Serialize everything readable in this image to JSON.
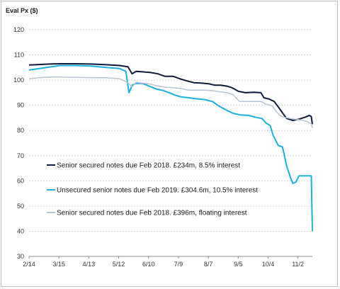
{
  "chart_data": {
    "type": "line",
    "ylabel": "Eval Px ($)",
    "ylim": [
      30,
      120
    ],
    "yticks": [
      30,
      40,
      50,
      60,
      70,
      80,
      90,
      100,
      110,
      120
    ],
    "xlim": [
      0,
      275
    ],
    "xticks": [
      {
        "label": "2/14",
        "x": 0
      },
      {
        "label": "3/15",
        "x": 29
      },
      {
        "label": "4/13",
        "x": 58
      },
      {
        "label": "5/12",
        "x": 87
      },
      {
        "label": "6/10",
        "x": 116
      },
      {
        "label": "7/9",
        "x": 145
      },
      {
        "label": "8/7",
        "x": 174
      },
      {
        "label": "9/5",
        "x": 203
      },
      {
        "label": "10/4",
        "x": 232
      },
      {
        "label": "11/2",
        "x": 261
      }
    ],
    "grid": true,
    "legend_position": "inside-lower-left",
    "series": [
      {
        "name": "Senior secured notes due Feb 2018. £234m, 8.5% interest",
        "color": "#0d1b3a",
        "points": [
          [
            0,
            106
          ],
          [
            10,
            106.2
          ],
          [
            20,
            106.4
          ],
          [
            30,
            106.5
          ],
          [
            45,
            106.5
          ],
          [
            60,
            106.4
          ],
          [
            75,
            106.1
          ],
          [
            88,
            105.8
          ],
          [
            96,
            105.3
          ],
          [
            100,
            102.5
          ],
          [
            104,
            103.5
          ],
          [
            110,
            103.3
          ],
          [
            118,
            103
          ],
          [
            125,
            102.5
          ],
          [
            132,
            101.5
          ],
          [
            140,
            101.5
          ],
          [
            148,
            100.3
          ],
          [
            155,
            99.5
          ],
          [
            160,
            99
          ],
          [
            168,
            98.8
          ],
          [
            175,
            98.5
          ],
          [
            180,
            98
          ],
          [
            186,
            98
          ],
          [
            192,
            97.6
          ],
          [
            197,
            97
          ],
          [
            203,
            95.6
          ],
          [
            210,
            95
          ],
          [
            218,
            95.2
          ],
          [
            225,
            95
          ],
          [
            228,
            93
          ],
          [
            233,
            92.5
          ],
          [
            238,
            91.5
          ],
          [
            242,
            89.3
          ],
          [
            246,
            87
          ],
          [
            250,
            84.8
          ],
          [
            256,
            84
          ],
          [
            262,
            84.5
          ],
          [
            268,
            85.3
          ],
          [
            272,
            86
          ],
          [
            274,
            85.5
          ],
          [
            275,
            82.5
          ]
        ]
      },
      {
        "name": "Unsecured senior notes due Feb 2019. £304.6m, 10.5% interest",
        "color": "#1ab0e0",
        "points": [
          [
            0,
            104
          ],
          [
            10,
            104.6
          ],
          [
            20,
            105.2
          ],
          [
            30,
            105.8
          ],
          [
            45,
            105.8
          ],
          [
            60,
            105.6
          ],
          [
            75,
            105
          ],
          [
            88,
            104.6
          ],
          [
            94,
            103.5
          ],
          [
            97,
            95
          ],
          [
            100,
            98
          ],
          [
            104,
            98.7
          ],
          [
            110,
            98.7
          ],
          [
            118,
            97.4
          ],
          [
            124,
            96.4
          ],
          [
            130,
            95.9
          ],
          [
            136,
            95
          ],
          [
            142,
            94
          ],
          [
            148,
            93.3
          ],
          [
            155,
            93
          ],
          [
            162,
            92.6
          ],
          [
            170,
            92.3
          ],
          [
            178,
            91.5
          ],
          [
            185,
            89.5
          ],
          [
            192,
            88
          ],
          [
            198,
            86.8
          ],
          [
            205,
            86.2
          ],
          [
            213,
            86
          ],
          [
            220,
            85.2
          ],
          [
            226,
            84.8
          ],
          [
            230,
            83
          ],
          [
            234,
            82
          ],
          [
            237,
            78
          ],
          [
            242,
            74
          ],
          [
            246,
            73.5
          ],
          [
            250,
            66
          ],
          [
            254,
            61
          ],
          [
            256,
            59
          ],
          [
            259,
            59.5
          ],
          [
            262,
            62
          ],
          [
            266,
            62
          ],
          [
            270,
            62
          ],
          [
            272,
            62
          ],
          [
            274,
            62
          ],
          [
            275,
            40
          ]
        ]
      },
      {
        "name": "Senior secured notes due Feb 2018. £396m, floating interest",
        "color": "#b7c3d2",
        "points": [
          [
            0,
            100.5
          ],
          [
            10,
            101
          ],
          [
            20,
            101.2
          ],
          [
            30,
            101.2
          ],
          [
            45,
            101.1
          ],
          [
            60,
            101
          ],
          [
            75,
            100.9
          ],
          [
            88,
            100.6
          ],
          [
            96,
            99
          ],
          [
            100,
            97.3
          ],
          [
            104,
            99.2
          ],
          [
            110,
            98.8
          ],
          [
            118,
            98.4
          ],
          [
            125,
            97.7
          ],
          [
            132,
            97.2
          ],
          [
            140,
            97
          ],
          [
            148,
            96.6
          ],
          [
            155,
            96
          ],
          [
            162,
            96
          ],
          [
            170,
            96
          ],
          [
            178,
            95.8
          ],
          [
            185,
            95.4
          ],
          [
            192,
            95
          ],
          [
            198,
            94.2
          ],
          [
            204,
            91.6
          ],
          [
            210,
            91.5
          ],
          [
            218,
            91.5
          ],
          [
            225,
            91.5
          ],
          [
            230,
            90.5
          ],
          [
            236,
            89.8
          ],
          [
            240,
            87.5
          ],
          [
            244,
            85.8
          ],
          [
            248,
            85.2
          ],
          [
            254,
            84.7
          ],
          [
            260,
            84.4
          ],
          [
            266,
            84
          ],
          [
            270,
            83.5
          ],
          [
            272,
            83
          ],
          [
            274,
            82.8
          ],
          [
            275,
            81
          ]
        ]
      }
    ]
  }
}
